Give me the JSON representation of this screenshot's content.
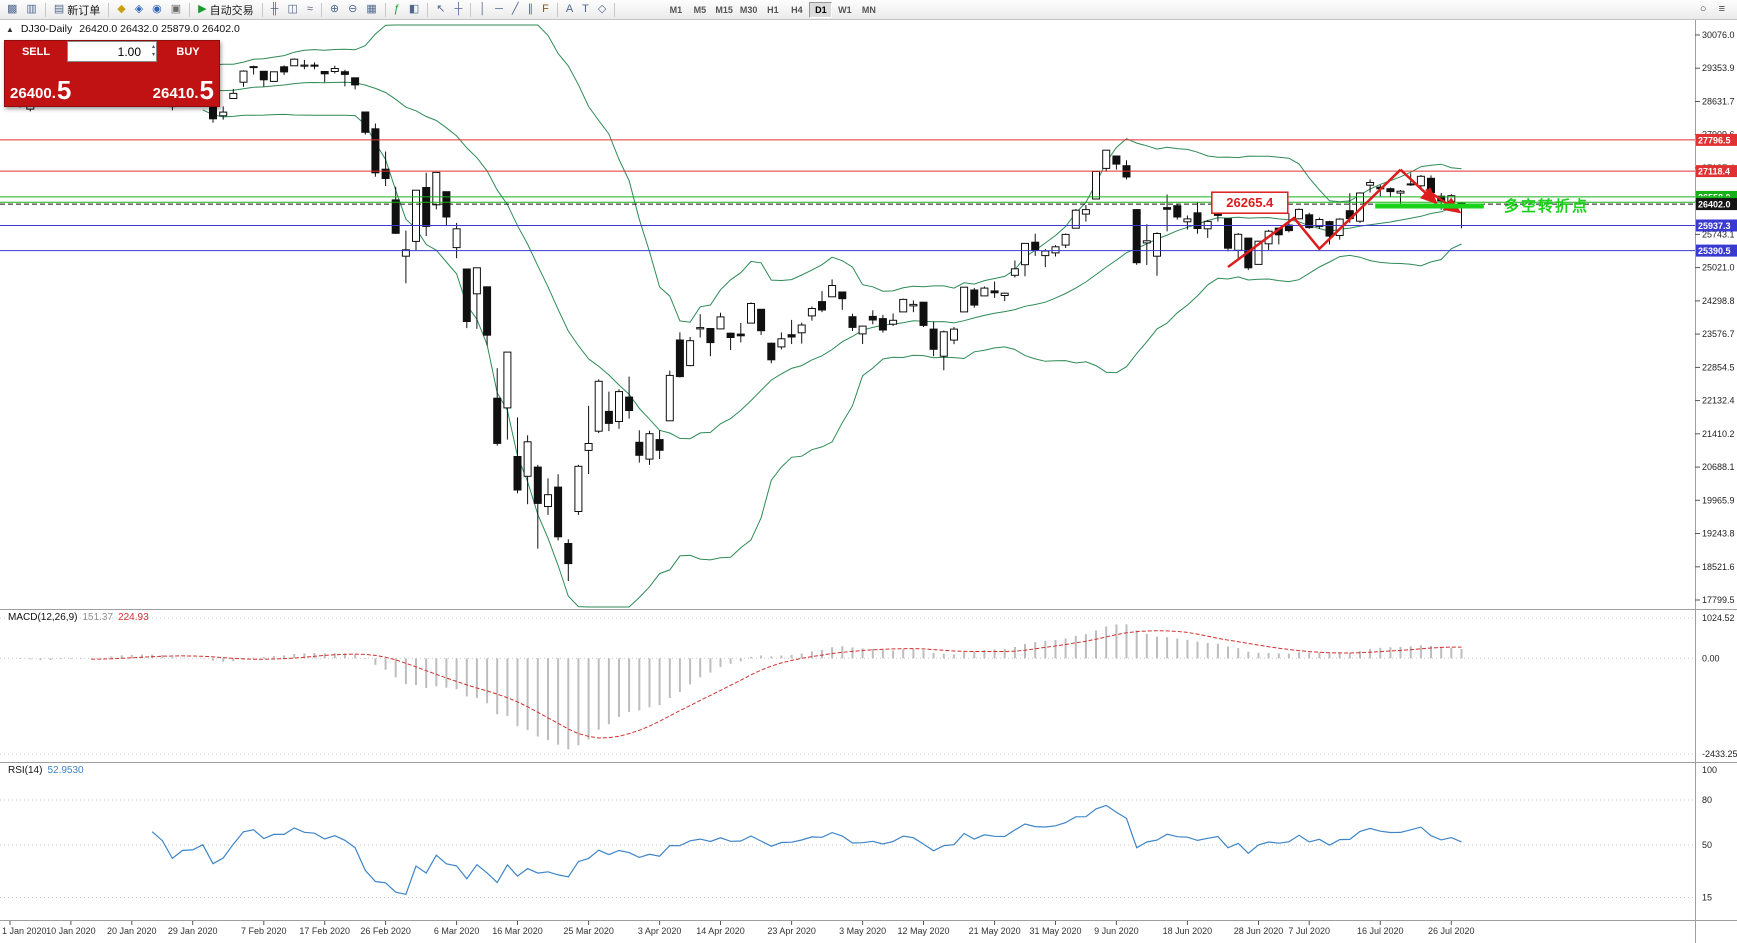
{
  "toolbar": {
    "left_items": [
      {
        "name": "new-chart-icon",
        "glyph": "▩"
      },
      {
        "name": "profiles-icon",
        "glyph": "▥"
      },
      {
        "name": "sep"
      },
      {
        "name": "new-order-button",
        "glyph": "▤",
        "label": "新订单"
      },
      {
        "name": "sep"
      },
      {
        "name": "marketwatch-icon",
        "glyph": "◆",
        "glyph_color": "#c9a013"
      },
      {
        "name": "data-window-icon",
        "glyph": "◈",
        "glyph_color": "#2c66b8"
      },
      {
        "name": "navigator-icon",
        "glyph": "◉",
        "glyph_color": "#2c66b8"
      },
      {
        "name": "terminal-icon",
        "glyph": "▣",
        "glyph_color": "#6a6a6a"
      },
      {
        "name": "sep"
      },
      {
        "name": "autotrading-button",
        "glyph": "▶",
        "label": "自动交易",
        "glyph_color": "#1a9c2e"
      },
      {
        "name": "sep"
      },
      {
        "name": "bar-chart-icon",
        "glyph": "╫"
      },
      {
        "name": "candlestick-chart-icon",
        "glyph": "◫"
      },
      {
        "name": "line-chart-icon",
        "glyph": "≈"
      },
      {
        "name": "sep"
      },
      {
        "name": "zoom-in-icon",
        "glyph": "⊕"
      },
      {
        "name": "zoom-out-icon",
        "glyph": "⊖"
      },
      {
        "name": "tile-windows-icon",
        "glyph": "▦"
      },
      {
        "name": "sep"
      },
      {
        "name": "indicators-icon",
        "glyph": "ƒ",
        "glyph_color": "#1a9c2e"
      },
      {
        "name": "templates-icon",
        "glyph": "◧"
      },
      {
        "name": "sep"
      },
      {
        "name": "cursor-icon",
        "glyph": "↖"
      },
      {
        "name": "crosshair-icon",
        "glyph": "┼"
      },
      {
        "name": "sep"
      },
      {
        "name": "vertical-line-icon",
        "glyph": "│"
      },
      {
        "name": "horizontal-line-icon",
        "glyph": "─"
      },
      {
        "name": "trendline-icon",
        "glyph": "╱"
      },
      {
        "name": "equidistant-channel-icon",
        "glyph": "∥"
      },
      {
        "name": "fibonacci-icon",
        "glyph": "F",
        "glyph_color": "#8a5a1d"
      },
      {
        "name": "sep"
      },
      {
        "name": "text-icon",
        "glyph": "A"
      },
      {
        "name": "text-label-icon",
        "glyph": "T"
      },
      {
        "name": "shapes-icon",
        "glyph": "◇"
      },
      {
        "name": "sep"
      }
    ],
    "timeframes": [
      "M1",
      "M5",
      "M15",
      "M30",
      "H1",
      "H4",
      "D1",
      "W1",
      "MN"
    ],
    "active_timeframe": "D1",
    "right_items": [
      {
        "name": "search-icon",
        "glyph": "○"
      },
      {
        "name": "menu-icon",
        "glyph": "≡"
      }
    ]
  },
  "symbol_header": {
    "collapse_icon": "▲",
    "symbol": "DJ30-Daily",
    "ohlc": "26420.0 26432.0 25879.0 26402.0"
  },
  "trade_panel": {
    "sell_label": "SELL",
    "buy_label": "BUY",
    "volume": "1.00",
    "spinner_up": "▴",
    "spinner_down": "▾",
    "sell_price": "26400",
    "sell_dot": ".",
    "sell_frac": "5",
    "buy_price": "26410",
    "buy_dot": ".",
    "buy_frac": "5"
  },
  "chart_data": {
    "type": "candlestick",
    "title": "DJ30-Daily",
    "ohlc_header": [
      26420.0,
      26432.0,
      25879.0,
      26402.0
    ],
    "price_range": {
      "top": 30076.0,
      "bottom": 17799.5
    },
    "y_ticks": [
      "30076.0",
      "29353.9",
      "28631.7",
      "27909.6",
      "27187.4",
      "26465.3",
      "25743.1",
      "25021.0",
      "24298.8",
      "23576.7",
      "22854.5",
      "22132.4",
      "21410.2",
      "20688.1",
      "19965.9",
      "19243.8",
      "18521.6",
      "17799.5"
    ],
    "x_labels": [
      {
        "i": 0,
        "label": "1 Jan 2020"
      },
      {
        "i": 6,
        "label": "10 Jan 2020"
      },
      {
        "i": 12,
        "label": "20 Jan 2020"
      },
      {
        "i": 18,
        "label": "29 Jan 2020"
      },
      {
        "i": 25,
        "label": "7 Feb 2020"
      },
      {
        "i": 31,
        "label": "17 Feb 2020"
      },
      {
        "i": 37,
        "label": "26 Feb 2020"
      },
      {
        "i": 44,
        "label": "6 Mar 2020"
      },
      {
        "i": 50,
        "label": "16 Mar 2020"
      },
      {
        "i": 57,
        "label": "25 Mar 2020"
      },
      {
        "i": 64,
        "label": "3 Apr 2020"
      },
      {
        "i": 70,
        "label": "14 Apr 2020"
      },
      {
        "i": 77,
        "label": "23 Apr 2020"
      },
      {
        "i": 84,
        "label": "3 May 2020"
      },
      {
        "i": 90,
        "label": "12 May 2020"
      },
      {
        "i": 97,
        "label": "21 May 2020"
      },
      {
        "i": 103,
        "label": "31 May 2020"
      },
      {
        "i": 109,
        "label": "9 Jun 2020"
      },
      {
        "i": 116,
        "label": "18 Jun 2020"
      },
      {
        "i": 123,
        "label": "28 Jun 2020"
      },
      {
        "i": 128,
        "label": "7 Jul 2020"
      },
      {
        "i": 135,
        "label": "16 Jul 2020"
      },
      {
        "i": 142,
        "label": "26 Jul 2020"
      }
    ],
    "candles": [
      [
        28639,
        28873,
        28566,
        28869
      ],
      [
        28554,
        28717,
        28501,
        28635
      ],
      [
        28466,
        28709,
        28418,
        28704
      ],
      [
        28640,
        28685,
        28541,
        28584
      ],
      [
        28556,
        28773,
        28523,
        28745
      ],
      [
        28796,
        28988,
        28780,
        28957
      ],
      [
        28962,
        29009,
        28805,
        28824
      ],
      [
        28841,
        28920,
        28802,
        28907
      ],
      [
        28910,
        29054,
        28897,
        28939
      ],
      [
        28925,
        29042,
        28847,
        29030
      ],
      [
        29072,
        29300,
        29056,
        29298
      ],
      [
        29314,
        29374,
        29265,
        29348
      ],
      [
        29269,
        29311,
        29125,
        29196
      ],
      [
        29239,
        29320,
        29151,
        29186
      ],
      [
        29084,
        29189,
        28966,
        29160
      ],
      [
        29204,
        29218,
        28844,
        28990
      ],
      [
        28543,
        28671,
        28440,
        28536
      ],
      [
        28594,
        28777,
        28566,
        28723
      ],
      [
        28820,
        28866,
        28626,
        28734
      ],
      [
        28640,
        28945,
        28565,
        28859
      ],
      [
        28696,
        28722,
        28169,
        28256
      ],
      [
        28320,
        28525,
        28236,
        28400
      ],
      [
        28697,
        28905,
        28697,
        28808
      ],
      [
        29049,
        29309,
        28950,
        29291
      ],
      [
        29389,
        29409,
        29217,
        29380
      ],
      [
        29287,
        29287,
        28951,
        29103
      ],
      [
        29069,
        29278,
        29057,
        29277
      ],
      [
        29386,
        29415,
        29210,
        29276
      ],
      [
        29407,
        29568,
        29407,
        29551
      ],
      [
        29400,
        29535,
        29332,
        29423
      ],
      [
        29422,
        29481,
        29332,
        29398
      ],
      [
        29282,
        29282,
        29048,
        29232
      ],
      [
        29282,
        29409,
        29240,
        29348
      ],
      [
        29279,
        29320,
        28960,
        29220
      ],
      [
        29147,
        29147,
        28893,
        28992
      ],
      [
        28403,
        28403,
        27912,
        27961
      ],
      [
        28037,
        28152,
        26998,
        27081
      ],
      [
        27160,
        27544,
        26795,
        26958
      ],
      [
        26492,
        26778,
        25753,
        25767
      ],
      [
        25270,
        25826,
        24681,
        25409
      ],
      [
        25591,
        26706,
        25392,
        26703
      ],
      [
        26763,
        27085,
        25707,
        25917
      ],
      [
        26386,
        27102,
        26286,
        27091
      ],
      [
        26671,
        26671,
        25944,
        26121
      ],
      [
        25457,
        25994,
        25227,
        25865
      ],
      [
        24992,
        24992,
        23707,
        23851
      ],
      [
        24453,
        25020,
        23690,
        25018
      ],
      [
        24604,
        24604,
        23328,
        23553
      ],
      [
        22184,
        22837,
        21154,
        21201
      ],
      [
        21973,
        23186,
        21285,
        23186
      ],
      [
        20917,
        21768,
        20117,
        20189
      ],
      [
        20487,
        21379,
        19882,
        21237
      ],
      [
        20688,
        20738,
        18917,
        19899
      ],
      [
        19830,
        20442,
        19649,
        20087
      ],
      [
        20253,
        20531,
        19094,
        19174
      ],
      [
        19028,
        19121,
        18213,
        18592
      ],
      [
        19722,
        20737,
        19649,
        20705
      ],
      [
        21050,
        22020,
        20538,
        21201
      ],
      [
        21468,
        22595,
        21427,
        22552
      ],
      [
        21898,
        22327,
        21469,
        21637
      ],
      [
        21678,
        22378,
        21522,
        22327
      ],
      [
        22208,
        22654,
        21742,
        21917
      ],
      [
        21227,
        21487,
        20784,
        20944
      ],
      [
        20862,
        21477,
        20735,
        21413
      ],
      [
        21285,
        21487,
        20863,
        21053
      ],
      [
        21693,
        22783,
        21693,
        22680
      ],
      [
        23449,
        23617,
        22634,
        22654
      ],
      [
        22893,
        23513,
        22880,
        23434
      ],
      [
        23690,
        24009,
        23504,
        23719
      ],
      [
        23698,
        23698,
        23096,
        23391
      ],
      [
        23690,
        24040,
        23683,
        23950
      ],
      [
        23597,
        23612,
        23229,
        23504
      ],
      [
        23576,
        23819,
        23396,
        23538
      ],
      [
        23817,
        24265,
        23817,
        24242
      ],
      [
        24116,
        24116,
        23558,
        23651
      ],
      [
        23380,
        23388,
        22942,
        23019
      ],
      [
        23301,
        23613,
        23244,
        23476
      ],
      [
        23565,
        23885,
        23361,
        23515
      ],
      [
        23605,
        23827,
        23371,
        23775
      ],
      [
        23974,
        24175,
        23868,
        24134
      ],
      [
        24284,
        24512,
        24054,
        24102
      ],
      [
        24389,
        24765,
        24389,
        24634
      ],
      [
        24491,
        24491,
        24106,
        24346
      ],
      [
        23956,
        24019,
        23645,
        23724
      ],
      [
        23581,
        23760,
        23361,
        23750
      ],
      [
        23961,
        24094,
        23791,
        23883
      ],
      [
        23913,
        23994,
        23610,
        23665
      ],
      [
        23792,
        24024,
        23754,
        23876
      ],
      [
        24059,
        24349,
        24059,
        24331
      ],
      [
        24190,
        24310,
        24053,
        24222
      ],
      [
        24270,
        24270,
        23732,
        23765
      ],
      [
        23686,
        23849,
        23096,
        23248
      ],
      [
        23095,
        23653,
        22790,
        23626
      ],
      [
        23447,
        23731,
        23360,
        23685
      ],
      [
        24060,
        24602,
        24060,
        24597
      ],
      [
        24535,
        24581,
        24150,
        24207
      ],
      [
        24407,
        24612,
        24407,
        24576
      ],
      [
        24516,
        24719,
        24364,
        24474
      ],
      [
        24414,
        24482,
        24294,
        24465
      ],
      [
        24854,
        25176,
        24806,
        24995
      ],
      [
        25085,
        25549,
        24832,
        25548
      ],
      [
        25573,
        25759,
        25277,
        25401
      ],
      [
        25283,
        25426,
        25032,
        25383
      ],
      [
        25343,
        25511,
        25263,
        25475
      ],
      [
        25510,
        25763,
        25447,
        25743
      ],
      [
        25879,
        26296,
        25879,
        26270
      ],
      [
        26184,
        26384,
        26021,
        26282
      ],
      [
        26513,
        27111,
        26513,
        27111
      ],
      [
        27177,
        27581,
        27106,
        27572
      ],
      [
        27447,
        27447,
        27151,
        27272
      ],
      [
        27236,
        27355,
        26938,
        26990
      ],
      [
        26282,
        26294,
        25082,
        25128
      ],
      [
        25560,
        25965,
        25078,
        25605
      ],
      [
        25270,
        25791,
        24843,
        25763
      ],
      [
        26326,
        26611,
        25811,
        26290
      ],
      [
        26366,
        26400,
        26068,
        26120
      ],
      [
        26016,
        26154,
        25848,
        26080
      ],
      [
        26213,
        26451,
        25759,
        25871
      ],
      [
        25865,
        26059,
        25667,
        26025
      ],
      [
        26186,
        26294,
        26022,
        26156
      ],
      [
        26085,
        26085,
        25376,
        25445
      ],
      [
        25399,
        25772,
        25222,
        25746
      ],
      [
        25662,
        25662,
        24971,
        25016
      ],
      [
        25092,
        25602,
        25092,
        25596
      ],
      [
        25539,
        25843,
        25406,
        25813
      ],
      [
        25880,
        25881,
        25524,
        25735
      ],
      [
        25946,
        26204,
        25787,
        25827
      ],
      [
        26082,
        26307,
        26082,
        26287
      ],
      [
        26169,
        26214,
        25865,
        25890
      ],
      [
        25918,
        26109,
        25862,
        26067
      ],
      [
        26022,
        26040,
        25523,
        25706
      ],
      [
        25719,
        26095,
        25630,
        26075
      ],
      [
        26258,
        26639,
        25996,
        26086
      ],
      [
        26031,
        26659,
        25994,
        26643
      ],
      [
        26812,
        26938,
        26653,
        26870
      ],
      [
        26770,
        26817,
        26572,
        26735
      ],
      [
        26736,
        26761,
        26567,
        26672
      ],
      [
        26639,
        26709,
        26417,
        26681
      ],
      [
        26820,
        27071,
        26797,
        26840
      ],
      [
        26799,
        27035,
        26706,
        27006
      ],
      [
        26963,
        27026,
        26604,
        26652
      ],
      [
        26573,
        26643,
        26281,
        26470
      ],
      [
        26462,
        26617,
        26385,
        26585
      ],
      [
        26420,
        26432,
        25879,
        26402
      ]
    ],
    "hlines": [
      {
        "price": 27796.5,
        "label": "27796.5",
        "color": "red"
      },
      {
        "price": 27118.4,
        "label": "27118.4",
        "color": "red"
      },
      {
        "price": 26558.0,
        "label": "26558.0",
        "color": "green"
      },
      {
        "price": 26444.0,
        "label": "26444.0",
        "color": "green"
      },
      {
        "price": 26402.0,
        "label": "26402.0",
        "color": "black",
        "dashed": true
      },
      {
        "price": 25937.3,
        "label": "25937.3",
        "color": "blue"
      },
      {
        "price": 25390.5,
        "label": "25390.5",
        "color": "blue"
      }
    ],
    "annotations": {
      "price_note": {
        "text": "26265.4",
        "i": 118.4,
        "price_top": 26660
      },
      "zigzag": [
        [
          120,
          25035
        ],
        [
          126.5,
          26100
        ],
        [
          129,
          25430
        ],
        [
          137,
          27150
        ]
      ],
      "arrows": [
        [
          [
            137,
            27150
          ],
          [
            140.5,
            26430
          ]
        ],
        [
          [
            139.5,
            26720
          ],
          [
            142.8,
            26230
          ]
        ]
      ],
      "support_segment": {
        "i1": 134.5,
        "i2": 145.2,
        "price": 26360
      },
      "turning_point_text": "多空转折点"
    },
    "indicators": {
      "bollinger": {
        "period": 20,
        "deviation": 2
      },
      "macd": {
        "label": "MACD(12,26,9)",
        "main_value": "151.37",
        "signal_value": "224.93",
        "ticks": [
          {
            "v": 1024.52,
            "label": "1024.52"
          },
          {
            "v": 0,
            "label": "0.00"
          },
          {
            "v": -2433.25,
            "label": "-2433.25"
          }
        ]
      },
      "rsi": {
        "label": "RSI(14)",
        "value": "52.9530",
        "period": 14,
        "levels": [
          80,
          50,
          15
        ],
        "ticks": [
          {
            "v": 100,
            "label": "100"
          },
          {
            "v": 80,
            "label": "80"
          },
          {
            "v": 50,
            "label": "50"
          },
          {
            "v": 15,
            "label": "15"
          }
        ]
      }
    },
    "colors": {
      "bollinger": "#2e8b57",
      "macd_hist": "#bdbdbd",
      "macd_signal": "#d23030",
      "rsi_line": "#3d85c8",
      "red": "#e03232",
      "green": "#18b018",
      "blue": "#3a3ad0",
      "black": "#151515",
      "annotation": "#dd1c1c",
      "bright_green": "#19d219"
    }
  }
}
